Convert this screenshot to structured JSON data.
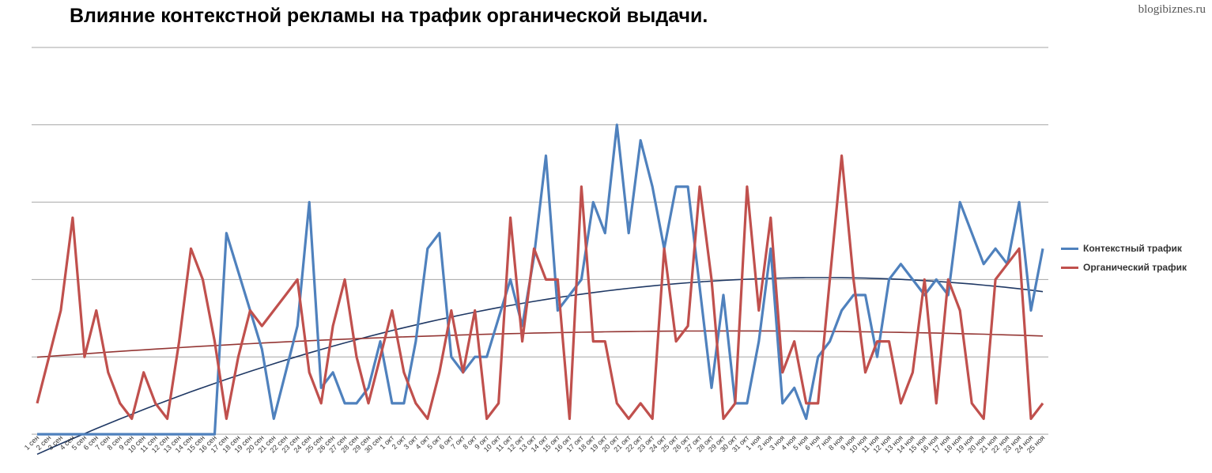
{
  "header": {
    "title": "Влияние  контекстной рекламы на трафик  органической выдачи.",
    "watermark": "blogibiznes.ru"
  },
  "colors": {
    "context": "#4f81bd",
    "organic": "#c0504d",
    "context_trend": "#1f3864",
    "organic_trend": "#943634",
    "grid": "#a6a6a6"
  },
  "chart_data": {
    "type": "line",
    "title": "Влияние  контекстной рекламы на трафик  органической выдачи.",
    "xlabel": "",
    "ylabel": "",
    "ylim": [
      0,
      5
    ],
    "grid": true,
    "y_axis_labels_shown": false,
    "legend_position": "right",
    "categories": [
      "1 сен",
      "2 сен",
      "3 сен",
      "4 сен",
      "5 сен",
      "6 сен",
      "7 сен",
      "8 сен",
      "9 сен",
      "10 сен",
      "11 сен",
      "12 сен",
      "13 сен",
      "14 сен",
      "15 сен",
      "16 сен",
      "17 сен",
      "18 сен",
      "19 сен",
      "20 сен",
      "21 сен",
      "22 сен",
      "23 сен",
      "24 сен",
      "25 сен",
      "26 сен",
      "27 сен",
      "28 сен",
      "29 сен",
      "30 сен",
      "1 окт",
      "2 окт",
      "3 окт",
      "4 окт",
      "5 окт",
      "6 окт",
      "7 окт",
      "8 окт",
      "9 окт",
      "10 окт",
      "11 окт",
      "12 окт",
      "13 окт",
      "14 окт",
      "15 окт",
      "16 окт",
      "17 окт",
      "18 окт",
      "19 окт",
      "20 окт",
      "21 окт",
      "22 окт",
      "23 окт",
      "24 окт",
      "25 окт",
      "26 окт",
      "27 окт",
      "28 окт",
      "29 окт",
      "30 окт",
      "31 окт",
      "1 ноя",
      "2 ноя",
      "3 ноя",
      "4 ноя",
      "5 ноя",
      "6 ноя",
      "7 ноя",
      "8 ноя",
      "9 ноя",
      "10 ноя",
      "11 ноя",
      "12 ноя",
      "13 ноя",
      "14 ноя",
      "15 ноя",
      "16 ноя",
      "17 ноя",
      "18 ноя",
      "19 ноя",
      "20 ноя",
      "21 ноя",
      "22 ноя",
      "23 ноя",
      "24 ноя",
      "25 ноя"
    ],
    "series": [
      {
        "name": "Контекстный трафик",
        "color": "#4f81bd",
        "values": [
          0,
          0,
          0,
          0,
          0,
          0,
          0,
          0,
          0,
          0,
          0,
          0,
          0,
          0,
          0,
          0,
          2.6,
          2.1,
          1.6,
          1.1,
          0.2,
          0.8,
          1.4,
          3.0,
          0.6,
          0.8,
          0.4,
          0.4,
          0.6,
          1.2,
          0.4,
          0.4,
          1.2,
          2.4,
          2.6,
          1.0,
          0.8,
          1.0,
          1.0,
          1.5,
          2.0,
          1.4,
          2.3,
          3.6,
          1.6,
          1.8,
          2.0,
          3.0,
          2.6,
          4.0,
          2.6,
          3.8,
          3.2,
          2.4,
          3.2,
          3.2,
          1.9,
          0.6,
          1.8,
          0.4,
          0.4,
          1.2,
          2.4,
          0.4,
          0.6,
          0.2,
          1.0,
          1.2,
          1.6,
          1.8,
          1.8,
          1.0,
          2.0,
          2.2,
          2.0,
          1.8,
          2.0,
          1.8,
          3.0,
          2.6,
          2.2,
          2.4,
          2.2,
          3.0,
          1.6,
          2.4
        ]
      },
      {
        "name": "Органический трафик",
        "color": "#c0504d",
        "values": [
          0.4,
          1.0,
          1.6,
          2.8,
          1.0,
          1.6,
          0.8,
          0.4,
          0.2,
          0.8,
          0.4,
          0.2,
          1.2,
          2.4,
          2.0,
          1.2,
          0.2,
          1.0,
          1.6,
          1.4,
          1.6,
          1.8,
          2.0,
          0.8,
          0.4,
          1.4,
          2.0,
          1.0,
          0.4,
          1.0,
          1.6,
          0.8,
          0.4,
          0.2,
          0.8,
          1.6,
          0.8,
          1.6,
          0.2,
          0.4,
          2.8,
          1.2,
          2.4,
          2.0,
          2.0,
          0.2,
          3.2,
          1.2,
          1.2,
          0.4,
          0.2,
          0.4,
          0.2,
          2.4,
          1.2,
          1.4,
          3.2,
          2.0,
          0.2,
          0.4,
          3.2,
          1.6,
          2.8,
          0.8,
          1.2,
          0.4,
          0.4,
          2.0,
          3.6,
          2.0,
          0.8,
          1.2,
          1.2,
          0.4,
          0.8,
          2.0,
          0.4,
          2.0,
          1.6,
          0.4,
          0.2,
          2.0,
          2.2,
          2.4,
          0.2,
          0.4
        ]
      }
    ],
    "trendlines": [
      {
        "series": "Контекстный трафик",
        "kind": "polynomial"
      },
      {
        "series": "Органический трафик",
        "kind": "polynomial"
      }
    ]
  },
  "legend": {
    "items": [
      {
        "label": "Контекстный трафик",
        "color": "#4f81bd"
      },
      {
        "label": "Органический трафик",
        "color": "#c0504d"
      }
    ]
  }
}
